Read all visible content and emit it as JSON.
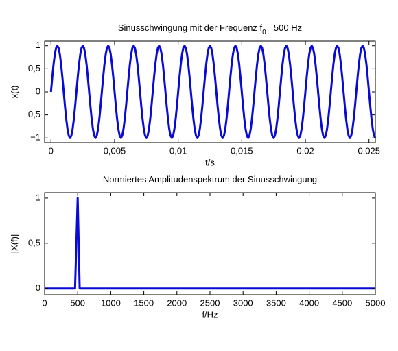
{
  "chart_data": [
    {
      "type": "line",
      "title": [
        "Sinusschwingung mit der Frequenz f",
        "0",
        "= 500 Hz"
      ],
      "xlabel": "t/s",
      "ylabel": "x(t)",
      "xlim": [
        -0.0005,
        0.0255
      ],
      "ylim": [
        -1.1,
        1.1
      ],
      "xticks": [
        0,
        {
          "value": 0.005,
          "label": "0,005"
        },
        {
          "value": 0.01,
          "label": "0,01"
        },
        {
          "value": 0.015,
          "label": "0,015"
        },
        {
          "value": 0.02,
          "label": "0,02"
        },
        {
          "value": 0.025,
          "label": "0,025"
        }
      ],
      "yticks": [
        {
          "value": -1,
          "label": "−1"
        },
        {
          "value": -0.5,
          "label": "−0,5"
        },
        0,
        {
          "value": 0.5,
          "label": "0,5"
        },
        1
      ],
      "grid": false,
      "color": "#0a0ad6",
      "x": [
        0,
        0.0001,
        0.0002,
        0.0003,
        0.0004,
        0.0005,
        0.0006,
        0.0007,
        0.0008,
        0.0009,
        0.001,
        0.0011,
        0.0012,
        0.0013,
        0.0014,
        0.0015,
        0.0016,
        0.0017,
        0.0018,
        0.0019,
        0.002,
        0.0021,
        0.0022,
        0.0023,
        0.0024,
        0.0025,
        0.0026,
        0.0027,
        0.0028,
        0.0029,
        0.003,
        0.0031,
        0.0032,
        0.0033,
        0.0034,
        0.0035,
        0.0036,
        0.0037,
        0.0038,
        0.0039,
        0.004,
        0.0041,
        0.0042,
        0.0043,
        0.0044,
        0.0045,
        0.0046,
        0.0047,
        0.0048,
        0.0049,
        0.005,
        0.0051,
        0.0052,
        0.0053,
        0.0054,
        0.0055,
        0.0056,
        0.0057,
        0.0058,
        0.0059,
        0.006,
        0.0061,
        0.0062,
        0.0063,
        0.0064,
        0.0065,
        0.0066,
        0.0067,
        0.0068,
        0.0069,
        0.007,
        0.0071,
        0.0072,
        0.0073,
        0.0074,
        0.0075,
        0.0076,
        0.0077,
        0.0078,
        0.0079,
        0.008,
        0.0081,
        0.0082,
        0.0083,
        0.0084,
        0.0085,
        0.0086,
        0.0087,
        0.0088,
        0.0089,
        0.009,
        0.0091,
        0.0092,
        0.0093,
        0.0094,
        0.0095,
        0.0096,
        0.0097,
        0.0098,
        0.0099,
        0.01,
        0.0101,
        0.0102,
        0.0103,
        0.0104,
        0.0105,
        0.0106,
        0.0107,
        0.0108,
        0.0109,
        0.011,
        0.0111,
        0.0112,
        0.0113,
        0.0114,
        0.0115,
        0.0116,
        0.0117,
        0.0118,
        0.0119,
        0.012,
        0.0121,
        0.0122,
        0.0123,
        0.0124,
        0.0125,
        0.0126,
        0.0127,
        0.0128,
        0.0129,
        0.013,
        0.0131,
        0.0132,
        0.0133,
        0.0134,
        0.0135,
        0.0136,
        0.0137,
        0.0138,
        0.0139,
        0.014,
        0.0141,
        0.0142,
        0.0143,
        0.0144,
        0.0145,
        0.0146,
        0.0147,
        0.0148,
        0.0149,
        0.015,
        0.0151,
        0.0152,
        0.0153,
        0.0154,
        0.0155,
        0.0156,
        0.0157,
        0.0158,
        0.0159,
        0.016,
        0.0161,
        0.0162,
        0.0163,
        0.0164,
        0.0165,
        0.0166,
        0.0167,
        0.0168,
        0.0169,
        0.017,
        0.0171,
        0.0172,
        0.0173,
        0.0174,
        0.0175,
        0.0176,
        0.0177,
        0.0178,
        0.0179,
        0.018,
        0.0181,
        0.0182,
        0.0183,
        0.0184,
        0.0185,
        0.0186,
        0.0187,
        0.0188,
        0.0189,
        0.019,
        0.0191,
        0.0192,
        0.0193,
        0.0194,
        0.0195,
        0.0196,
        0.0197,
        0.0198,
        0.0199,
        0.02,
        0.0201,
        0.0202,
        0.0203,
        0.0204,
        0.0205,
        0.0206,
        0.0207,
        0.0208,
        0.0209,
        0.021,
        0.0211,
        0.0212,
        0.0213,
        0.0214,
        0.0215,
        0.0216,
        0.0217,
        0.0218,
        0.0219,
        0.022,
        0.0221,
        0.0222,
        0.0223,
        0.0224,
        0.0225,
        0.0226,
        0.0227,
        0.0228,
        0.0229,
        0.023,
        0.0231,
        0.0232,
        0.0233,
        0.0234,
        0.0235,
        0.0236,
        0.0237,
        0.0238,
        0.0239,
        0.024,
        0.0241,
        0.0242,
        0.0243,
        0.0244,
        0.0245,
        0.0246,
        0.0247,
        0.0248,
        0.0249,
        0.025,
        0.0251,
        0.0252,
        0.0253,
        0.0254,
        0.0255
      ],
      "values": [
        0,
        0.309,
        0.588,
        0.809,
        0.951,
        1,
        0.951,
        0.809,
        0.588,
        0.309,
        0,
        -0.309,
        -0.588,
        -0.809,
        -0.951,
        -1,
        -0.951,
        -0.809,
        -0.588,
        -0.309,
        0,
        0.309,
        0.588,
        0.809,
        0.951,
        1,
        0.951,
        0.809,
        0.588,
        0.309,
        0,
        -0.309,
        -0.588,
        -0.809,
        -0.951,
        -1,
        -0.951,
        -0.809,
        -0.588,
        -0.309,
        0,
        0.309,
        0.588,
        0.809,
        0.951,
        1,
        0.951,
        0.809,
        0.588,
        0.309,
        0,
        -0.309,
        -0.588,
        -0.809,
        -0.951,
        -1,
        -0.951,
        -0.809,
        -0.588,
        -0.309,
        0,
        0.309,
        0.588,
        0.809,
        0.951,
        1,
        0.951,
        0.809,
        0.588,
        0.309,
        0,
        -0.309,
        -0.588,
        -0.809,
        -0.951,
        -1,
        -0.951,
        -0.809,
        -0.588,
        -0.309,
        0,
        0.309,
        0.588,
        0.809,
        0.951,
        1,
        0.951,
        0.809,
        0.588,
        0.309,
        0,
        -0.309,
        -0.588,
        -0.809,
        -0.951,
        -1,
        -0.951,
        -0.809,
        -0.588,
        -0.309,
        0,
        0.309,
        0.588,
        0.809,
        0.951,
        1,
        0.951,
        0.809,
        0.588,
        0.309,
        0,
        -0.309,
        -0.588,
        -0.809,
        -0.951,
        -1,
        -0.951,
        -0.809,
        -0.588,
        -0.309,
        0,
        0.309,
        0.588,
        0.809,
        0.951,
        1,
        0.951,
        0.809,
        0.588,
        0.309,
        0,
        -0.309,
        -0.588,
        -0.809,
        -0.951,
        -1,
        -0.951,
        -0.809,
        -0.588,
        -0.309,
        0,
        0.309,
        0.588,
        0.809,
        0.951,
        1,
        0.951,
        0.809,
        0.588,
        0.309,
        0,
        -0.309,
        -0.588,
        -0.809,
        -0.951,
        -1,
        -0.951,
        -0.809,
        -0.588,
        -0.309,
        0,
        0.309,
        0.588,
        0.809,
        0.951,
        1,
        0.951,
        0.809,
        0.588,
        0.309,
        0,
        -0.309,
        -0.588,
        -0.809,
        -0.951,
        -1,
        -0.951,
        -0.809,
        -0.588,
        -0.309,
        0,
        0.309,
        0.588,
        0.809,
        0.951,
        1,
        0.951,
        0.809,
        0.588,
        0.309,
        0,
        -0.309,
        -0.588,
        -0.809,
        -0.951,
        -1,
        -0.951,
        -0.809,
        -0.588,
        -0.309,
        0,
        0.309,
        0.588,
        0.809,
        0.951,
        1,
        0.951,
        0.809,
        0.588,
        0.309,
        0,
        -0.309,
        -0.588,
        -0.809,
        -0.951,
        -1,
        -0.951,
        -0.809,
        -0.588,
        -0.309,
        0,
        0.309,
        0.588,
        0.809,
        0.951,
        1,
        0.951,
        0.809,
        0.588,
        0.309,
        0,
        -0.309,
        -0.588,
        -0.809,
        -0.951,
        -1,
        -0.951,
        -0.809,
        -0.588,
        -0.309,
        0,
        0.309,
        0.588,
        0.809,
        0.951,
        1,
        0.951,
        0.809,
        0.588,
        0.309,
        0,
        -0.309,
        -0.588,
        -0.809,
        -0.951,
        -1
      ]
    },
    {
      "type": "line",
      "title": [
        "Normiertes Amplitudenspektrum der Sinusschwingung"
      ],
      "xlabel": "f/Hz",
      "ylabel": "|X(f)|",
      "xlim": [
        0,
        5000
      ],
      "ylim": [
        -0.07,
        1.06
      ],
      "xticks": [
        0,
        500,
        1000,
        1500,
        2000,
        2500,
        3000,
        3500,
        4000,
        4500,
        5000
      ],
      "yticks": [
        0,
        {
          "value": 0.5,
          "label": "0,5"
        },
        1
      ],
      "grid": false,
      "color": "#0a0ad6",
      "x": [
        0,
        460,
        500,
        530,
        5000
      ],
      "values": [
        0,
        0,
        1,
        0,
        0
      ]
    }
  ]
}
